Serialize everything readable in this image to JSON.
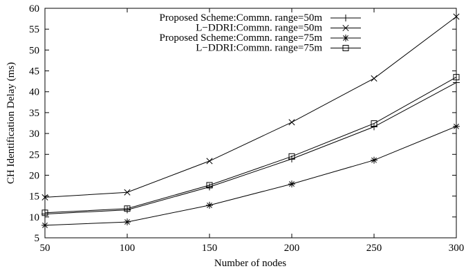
{
  "chart_data": {
    "type": "line",
    "title": "",
    "xlabel": "Number of nodes",
    "ylabel": "CH Identification Delay (ms)",
    "x": [
      50,
      100,
      150,
      200,
      250,
      300
    ],
    "xlim": [
      50,
      300
    ],
    "ylim": [
      5,
      60
    ],
    "xticks": [
      50,
      100,
      150,
      200,
      250,
      300
    ],
    "yticks": [
      5,
      10,
      15,
      20,
      25,
      30,
      35,
      40,
      45,
      50,
      55,
      60
    ],
    "grid": false,
    "legend_position": "top-right",
    "series": [
      {
        "name": "Proposed Scheme:Commn. range=50m",
        "marker": "plus",
        "values": [
          10.7,
          11.7,
          17.2,
          23.9,
          31.6,
          42.2
        ]
      },
      {
        "name": "L−DDRI:Commn. range=50m",
        "marker": "cross",
        "values": [
          14.7,
          15.9,
          23.4,
          32.7,
          43.2,
          58.0
        ]
      },
      {
        "name": "Proposed Scheme:Commn. range=75m",
        "marker": "star",
        "values": [
          8.0,
          8.8,
          12.8,
          17.9,
          23.6,
          31.7
        ]
      },
      {
        "name": "L−DDRI:Commn. range=75m",
        "marker": "square",
        "values": [
          11.0,
          12.0,
          17.6,
          24.5,
          32.4,
          43.5
        ]
      }
    ]
  }
}
